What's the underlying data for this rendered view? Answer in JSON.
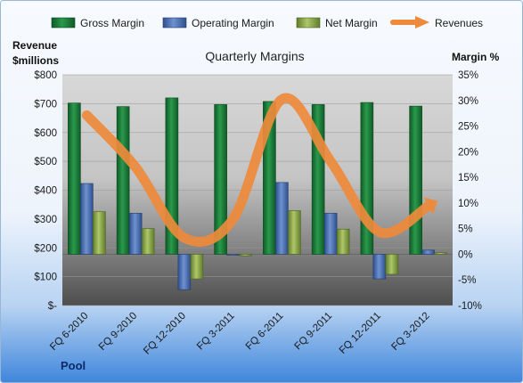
{
  "chart_data": {
    "type": "bar",
    "title": "Quarterly Margins",
    "company": "Pool",
    "y_left_label_line1": "Revenue",
    "y_left_label_line2": "$millions",
    "y_right_label": "Margin %",
    "categories": [
      "FQ 6-2010",
      "FQ 9-2010",
      "FQ 12-2010",
      "FQ 3-2011",
      "FQ 6-2011",
      "FQ 9-2011",
      "FQ 12-2011",
      "FQ 3-2012"
    ],
    "y_left_range": [
      0,
      800
    ],
    "y_left_ticks": [
      "$-",
      "$100",
      "$200",
      "$300",
      "$400",
      "$500",
      "$600",
      "$700",
      "$800"
    ],
    "y_right_range": [
      -10,
      35
    ],
    "y_right_ticks": [
      "-10%",
      "-5%",
      "0%",
      "5%",
      "10%",
      "15%",
      "20%",
      "25%",
      "30%",
      "35%"
    ],
    "series": [
      {
        "name": "Gross Margin",
        "axis": "right",
        "kind": "bar",
        "color": "#1f7a3a",
        "values": [
          29.5,
          28.8,
          30.5,
          29.2,
          29.8,
          29.2,
          29.6,
          28.9
        ]
      },
      {
        "name": "Operating Margin",
        "axis": "right",
        "kind": "bar",
        "color": "#4a6fb0",
        "values": [
          13.8,
          8.0,
          -6.9,
          -0.1,
          14.0,
          8.0,
          -4.8,
          0.8
        ]
      },
      {
        "name": "Net Margin",
        "axis": "right",
        "kind": "bar",
        "color": "#8aa64a",
        "values": [
          8.3,
          5.0,
          -4.8,
          -0.3,
          8.5,
          4.9,
          -3.9,
          0.3
        ]
      },
      {
        "name": "Revenues",
        "axis": "left",
        "kind": "line",
        "color": "#ee8a3b",
        "values": [
          660,
          480,
          235,
          300,
          715,
          500,
          255,
          345
        ]
      }
    ],
    "legend_position": "top",
    "grid": true
  },
  "colors": {
    "frame_top": "#f4f8fd",
    "frame_bottom": "#4a90e2",
    "plot_top": "#d4d4d4",
    "plot_bottom": "#5a5a5a"
  }
}
